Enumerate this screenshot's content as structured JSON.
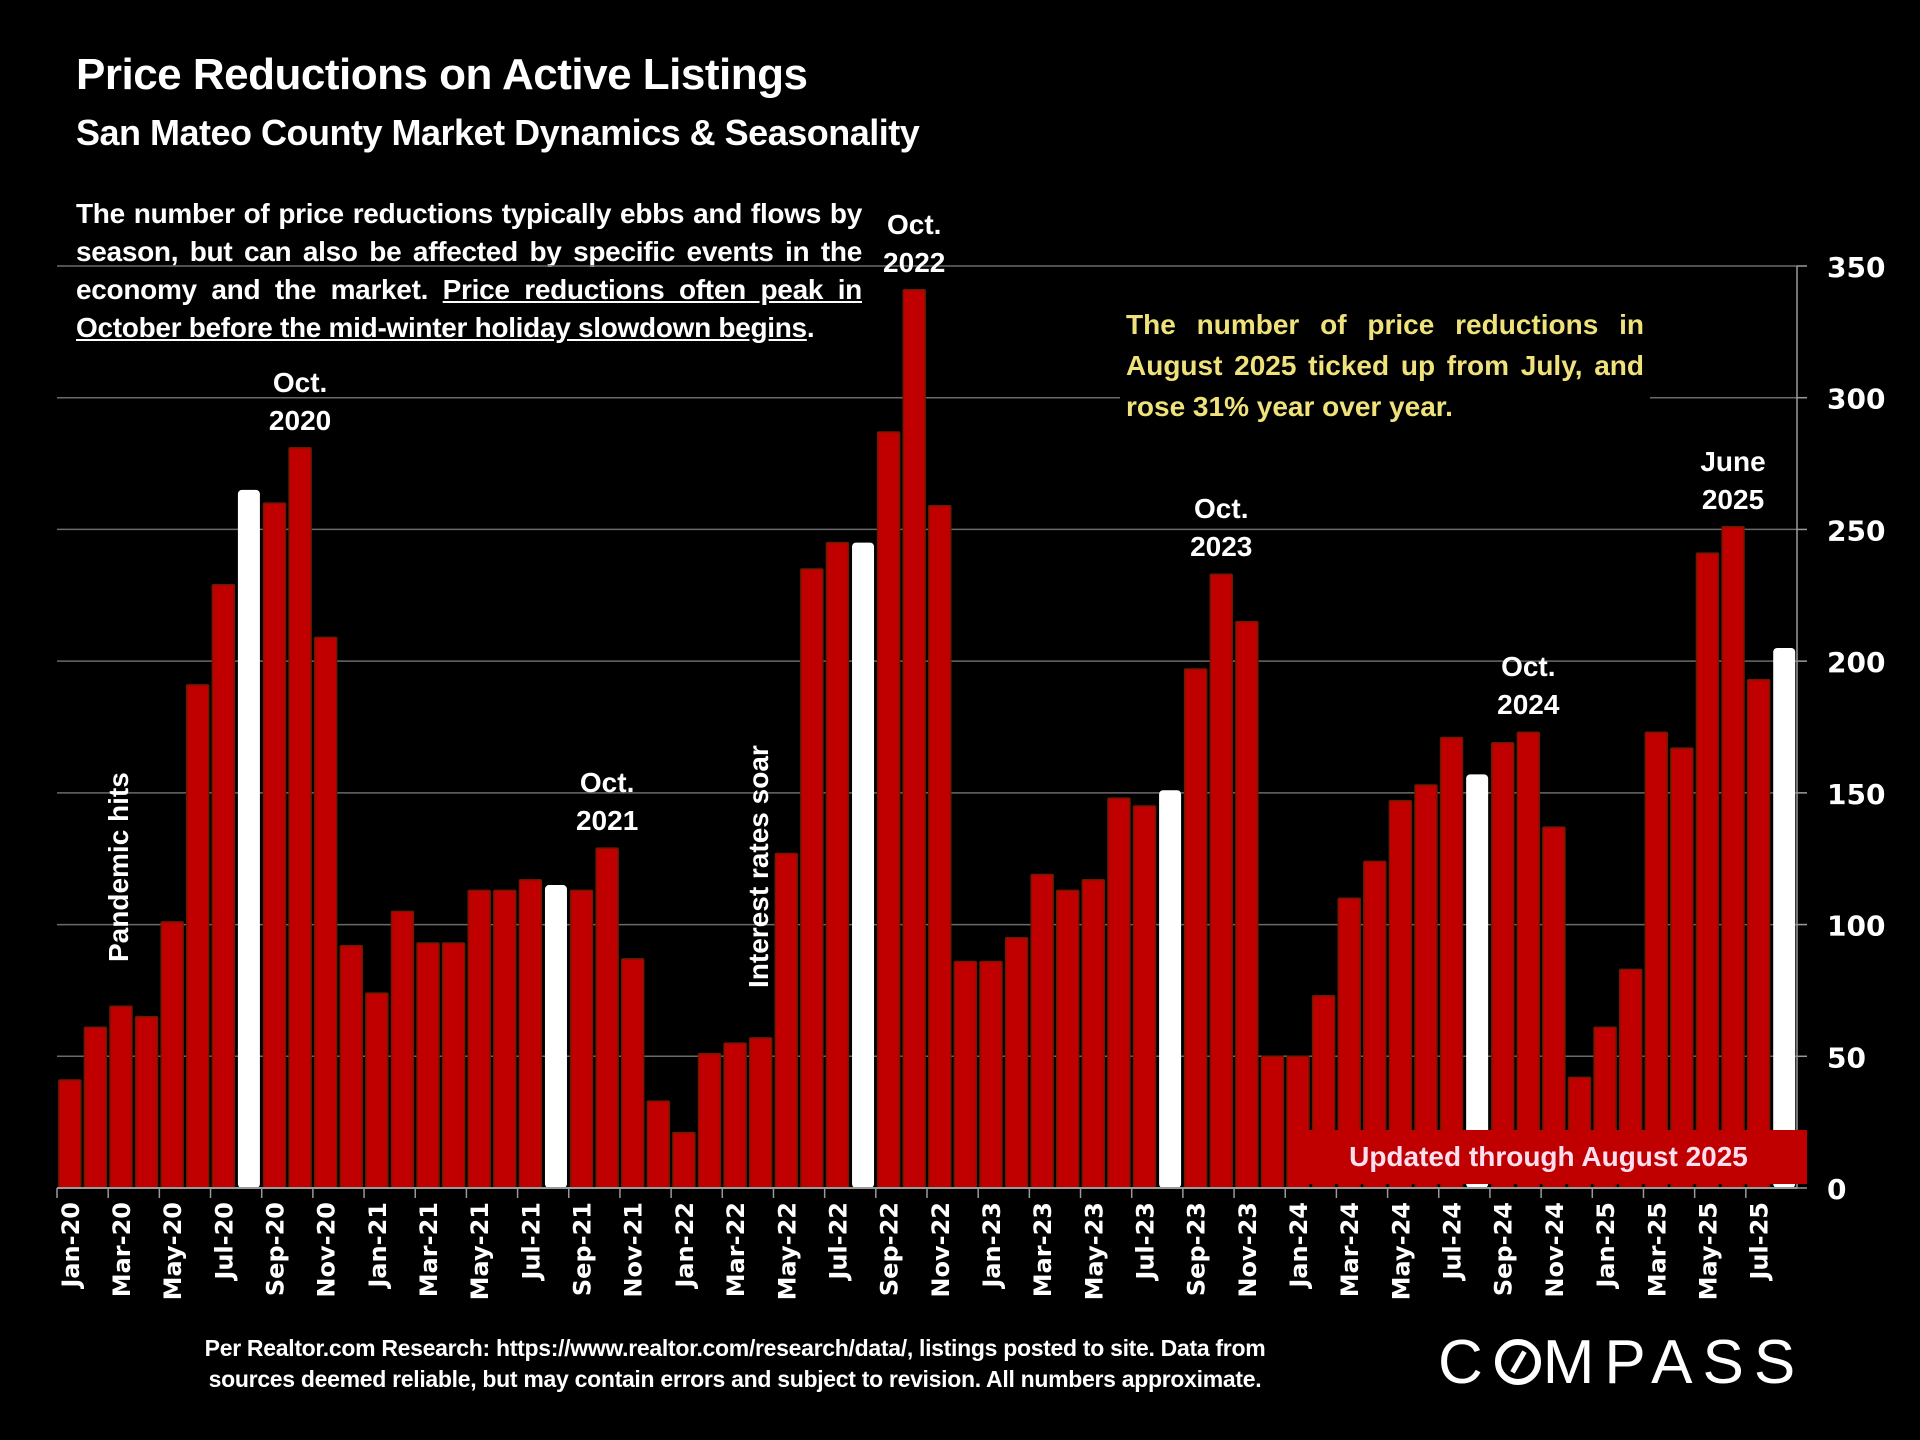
{
  "title": "Price Reductions on Active Listings",
  "subtitle": "San Mateo County Market Dynamics & Seasonality",
  "intro": {
    "plain": "The number of price reductions typically ebbs and flows by season, but can also be affected by specific events in the economy and the market. ",
    "underlined": "Price reductions often peak in October before the mid-winter holiday slowdown begins",
    "end": "."
  },
  "callout": "The number of price reductions in August 2025 ticked up from July, and rose 31% year over year.",
  "updated_label": "Updated through August 2025",
  "footer": {
    "line1": "Per Realtor.com Research:  https://www.realtor.com/research/data/, listings posted to site. Data from",
    "line2": "sources deemed reliable, but may contain errors and subject to revision. All numbers approximate."
  },
  "logo": {
    "pre": "C",
    "post": "MPASS"
  },
  "colors": {
    "bar": "#c00000",
    "highlight": "#ffffff",
    "callout_text": "#f0e27a",
    "background": "#000000"
  },
  "chart_data": {
    "type": "bar",
    "title": "Price Reductions on Active Listings",
    "xlabel": "",
    "ylabel": "",
    "ylim": [
      0,
      350
    ],
    "y_ticks": [
      0,
      50,
      100,
      150,
      200,
      250,
      300,
      350
    ],
    "y_axis_side": "right",
    "grid": true,
    "categories": [
      "Jan-20",
      "Feb-20",
      "Mar-20",
      "Apr-20",
      "May-20",
      "Jun-20",
      "Jul-20",
      "Aug-20",
      "Sep-20",
      "Oct-20",
      "Nov-20",
      "Dec-20",
      "Jan-21",
      "Feb-21",
      "Mar-21",
      "Apr-21",
      "May-21",
      "Jun-21",
      "Jul-21",
      "Aug-21",
      "Sep-21",
      "Oct-21",
      "Nov-21",
      "Dec-21",
      "Jan-22",
      "Feb-22",
      "Mar-22",
      "Apr-22",
      "May-22",
      "Jun-22",
      "Jul-22",
      "Aug-22",
      "Sep-22",
      "Oct-22",
      "Nov-22",
      "Dec-22",
      "Jan-23",
      "Feb-23",
      "Mar-23",
      "Apr-23",
      "May-23",
      "Jun-23",
      "Jul-23",
      "Aug-23",
      "Sep-23",
      "Oct-23",
      "Nov-23",
      "Dec-23",
      "Jan-24",
      "Feb-24",
      "Mar-24",
      "Apr-24",
      "May-24",
      "Jun-24",
      "Jul-24",
      "Aug-24",
      "Sep-24",
      "Oct-24",
      "Nov-24",
      "Dec-24",
      "Jan-25",
      "Feb-25",
      "Mar-25",
      "Apr-25",
      "May-25",
      "Jun-25",
      "Jul-25",
      "Aug-25"
    ],
    "values": [
      41,
      61,
      69,
      65,
      101,
      191,
      229,
      265,
      260,
      281,
      209,
      92,
      74,
      105,
      93,
      93,
      113,
      113,
      117,
      115,
      113,
      129,
      87,
      33,
      21,
      51,
      55,
      57,
      127,
      235,
      245,
      245,
      287,
      341,
      259,
      86,
      86,
      95,
      119,
      113,
      117,
      148,
      145,
      151,
      197,
      233,
      215,
      50,
      50,
      73,
      110,
      124,
      147,
      153,
      171,
      157,
      169,
      173,
      137,
      42,
      61,
      83,
      173,
      167,
      241,
      251,
      193,
      205
    ],
    "highlighted": [
      "Aug-20",
      "Aug-21",
      "Aug-22",
      "Aug-23",
      "Aug-24",
      "Aug-25"
    ],
    "x_tick_labels": [
      "Jan-20",
      "Mar-20",
      "May-20",
      "Jul-20",
      "Sep-20",
      "Nov-20",
      "Jan-21",
      "Mar-21",
      "May-21",
      "Jul-21",
      "Sep-21",
      "Nov-21",
      "Jan-22",
      "Mar-22",
      "May-22",
      "Jul-22",
      "Sep-22",
      "Nov-22",
      "Jan-23",
      "Mar-23",
      "May-23",
      "Jul-23",
      "Sep-23",
      "Nov-23",
      "Jan-24",
      "Mar-24",
      "May-24",
      "Jul-24",
      "Sep-24",
      "Nov-24",
      "Jan-25",
      "Mar-25",
      "May-25",
      "Jul-25"
    ],
    "annotations": [
      {
        "text_lines": [
          "Oct.",
          "2020"
        ],
        "category": "Oct-20"
      },
      {
        "text_lines": [
          "Oct.",
          "2021"
        ],
        "category": "Oct-21"
      },
      {
        "text_lines": [
          "Oct.",
          "2022"
        ],
        "category": "Oct-22"
      },
      {
        "text_lines": [
          "Oct.",
          "2023"
        ],
        "category": "Oct-23"
      },
      {
        "text_lines": [
          "Oct.",
          "2024"
        ],
        "category": "Oct-24"
      },
      {
        "text_lines": [
          "June",
          "2025"
        ],
        "category": "Jun-25"
      }
    ],
    "event_labels": [
      {
        "text": "Pandemic hits",
        "category": "Mar-20"
      },
      {
        "text": "Interest rates soar",
        "category": "Apr-22"
      }
    ]
  }
}
